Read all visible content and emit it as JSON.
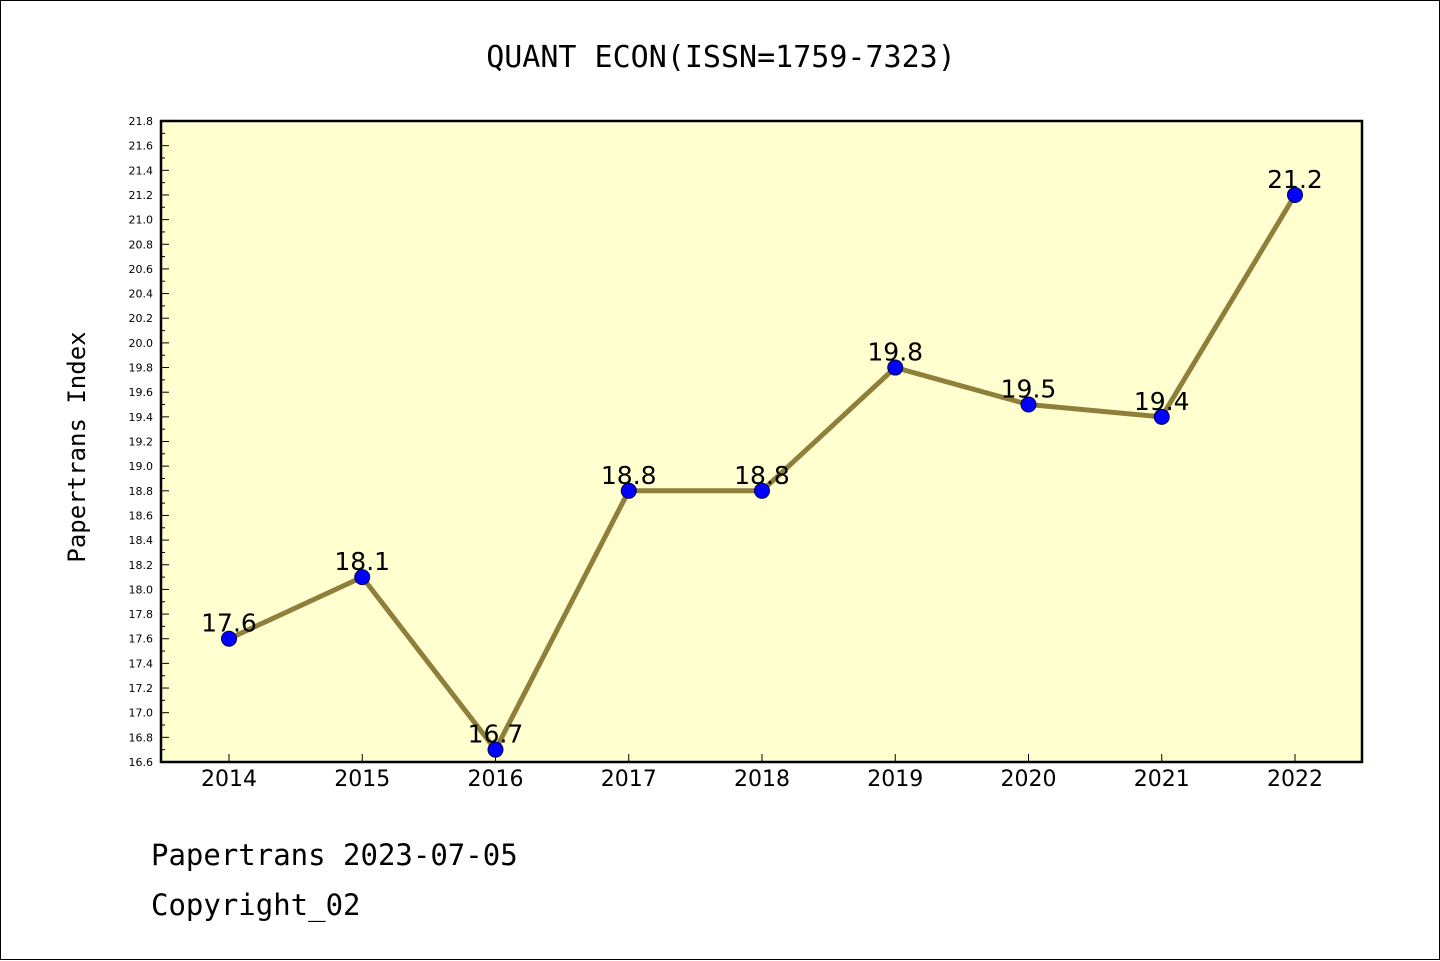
{
  "chart_data": {
    "type": "line",
    "title": "QUANT ECON(ISSN=1759-7323)",
    "ylabel": "Papertrans Index",
    "xlabel": "",
    "categories": [
      "2014",
      "2015",
      "2016",
      "2017",
      "2018",
      "2019",
      "2020",
      "2021",
      "2022"
    ],
    "values": [
      17.6,
      18.1,
      16.7,
      18.8,
      18.8,
      19.8,
      19.5,
      19.4,
      21.2
    ],
    "data_labels": [
      "17.6",
      "18.1",
      "16.7",
      "18.8",
      "18.8",
      "19.8",
      "19.5",
      "19.4",
      "21.2"
    ],
    "ylim": [
      16.6,
      21.8
    ],
    "y_tick_step": 0.2,
    "y_minor_step": 0.1,
    "grid": false,
    "legend": "none",
    "colors": {
      "plot_background": "#ffffd0",
      "line": "#8f7f3a",
      "marker": "#0000ff"
    }
  },
  "footer": {
    "line1": "Papertrans 2023-07-05",
    "line2": "Copyright_02"
  }
}
